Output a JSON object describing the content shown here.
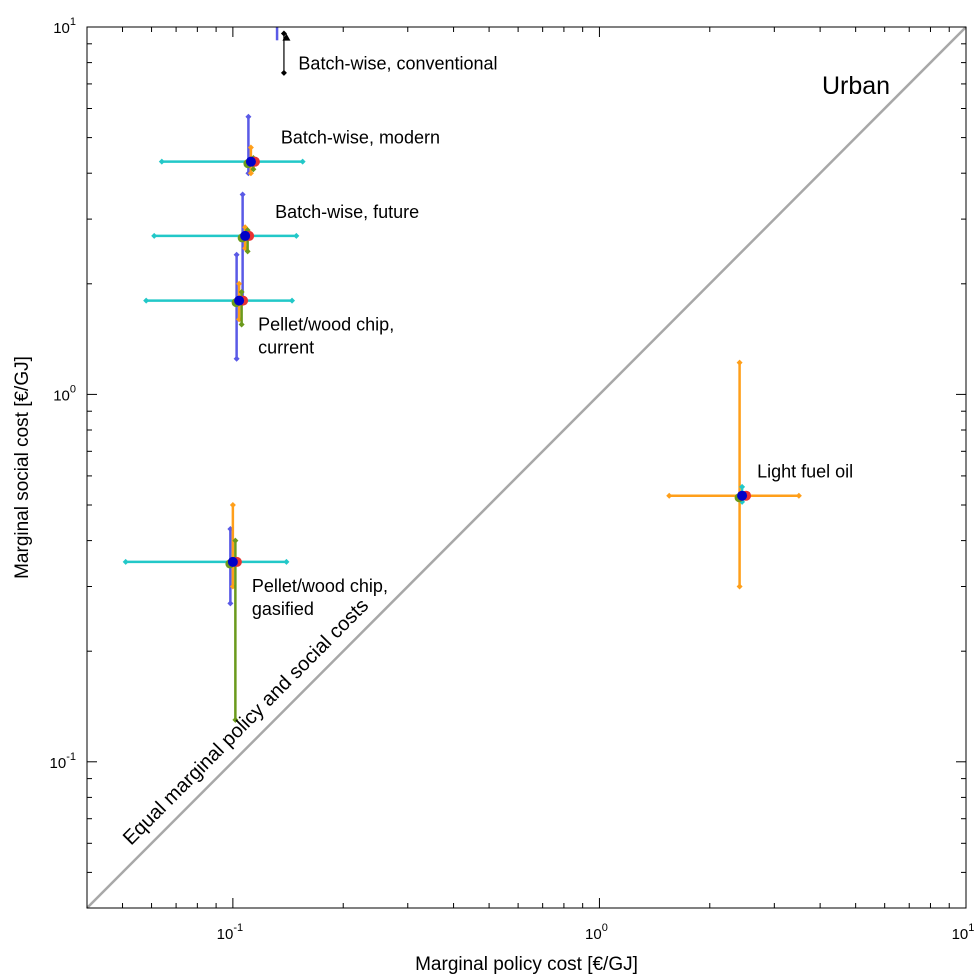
{
  "chart_data": {
    "type": "scatter",
    "title": "",
    "xlabel": "Marginal policy cost [€/GJ]",
    "ylabel": "Marginal social cost [€/GJ]",
    "x_scale": "log",
    "y_scale": "log",
    "xlim": [
      0.04,
      10
    ],
    "ylim": [
      0.04,
      10
    ],
    "x_ticks": [
      {
        "value": 0.1,
        "base": "10",
        "exp": "-1"
      },
      {
        "value": 1,
        "base": "10",
        "exp": "0"
      },
      {
        "value": 10,
        "base": "10",
        "exp": "1"
      }
    ],
    "y_ticks": [
      {
        "value": 0.1,
        "base": "10",
        "exp": "-1"
      },
      {
        "value": 1,
        "base": "10",
        "exp": "0"
      },
      {
        "value": 10,
        "base": "10",
        "exp": "1"
      }
    ],
    "grid": false,
    "panel_label": "Urban",
    "diagonal_label": "Equal marginal policy and social costs",
    "colors": {
      "blue": "#5a5ae6",
      "cyan": "#22c8c8",
      "orange": "#ff9f1a",
      "green": "#6b9a1c",
      "red": "#e83232",
      "marker": "#0000c8",
      "diagonal": "#a8a8a8",
      "axis": "#000000"
    },
    "points": [
      {
        "label": "Batch-wise, conventional",
        "x": 0.14,
        "y": 9.3,
        "errors": [
          {
            "color": "black",
            "dir": "y",
            "lo": 7.5,
            "hi": 9.6
          }
        ],
        "side_line": {
          "color": "blue",
          "x": 0.132,
          "lo": 9.2,
          "hi": 10
        }
      },
      {
        "label": "Batch-wise, modern",
        "x": 0.112,
        "y": 4.3,
        "errors": [
          {
            "color": "cyan",
            "dir": "x",
            "lo": 0.064,
            "hi": 0.155
          },
          {
            "color": "blue",
            "dir": "y",
            "lo": 4.0,
            "hi": 5.7
          },
          {
            "color": "orange",
            "dir": "y",
            "lo": 4.0,
            "hi": 4.7
          },
          {
            "color": "green",
            "dir": "y",
            "lo": 4.1,
            "hi": 4.4
          }
        ]
      },
      {
        "label": "Batch-wise, future",
        "x": 0.108,
        "y": 2.7,
        "errors": [
          {
            "color": "cyan",
            "dir": "x",
            "lo": 0.061,
            "hi": 0.149
          },
          {
            "color": "blue",
            "dir": "y",
            "lo": 1.8,
            "hi": 3.5
          },
          {
            "color": "orange",
            "dir": "y",
            "lo": 2.5,
            "hi": 2.85
          },
          {
            "color": "green",
            "dir": "y",
            "lo": 2.45,
            "hi": 2.8
          }
        ]
      },
      {
        "label": "Pellet/wood chip, current",
        "x": 0.104,
        "y": 1.8,
        "errors": [
          {
            "color": "cyan",
            "dir": "x",
            "lo": 0.058,
            "hi": 0.145
          },
          {
            "color": "blue",
            "dir": "y",
            "lo": 1.25,
            "hi": 2.4
          },
          {
            "color": "orange",
            "dir": "y",
            "lo": 1.6,
            "hi": 2.0
          },
          {
            "color": "green",
            "dir": "y",
            "lo": 1.55,
            "hi": 1.9
          }
        ]
      },
      {
        "label": "Pellet/wood chip, gasified",
        "x": 0.1,
        "y": 0.35,
        "errors": [
          {
            "color": "cyan",
            "dir": "x",
            "lo": 0.051,
            "hi": 0.14
          },
          {
            "color": "blue",
            "dir": "y",
            "lo": 0.27,
            "hi": 0.43
          },
          {
            "color": "orange",
            "dir": "y",
            "lo": 0.3,
            "hi": 0.5
          },
          {
            "color": "green",
            "dir": "y",
            "lo": 0.13,
            "hi": 0.4
          }
        ]
      },
      {
        "label": "Light fuel oil",
        "x": 2.45,
        "y": 0.53,
        "errors": [
          {
            "color": "orange",
            "dir": "x",
            "lo": 1.55,
            "hi": 3.5
          },
          {
            "color": "orange",
            "dir": "y",
            "lo": 0.3,
            "hi": 1.22
          },
          {
            "color": "cyan",
            "dir": "y",
            "lo": 0.51,
            "hi": 0.56
          }
        ]
      }
    ]
  }
}
